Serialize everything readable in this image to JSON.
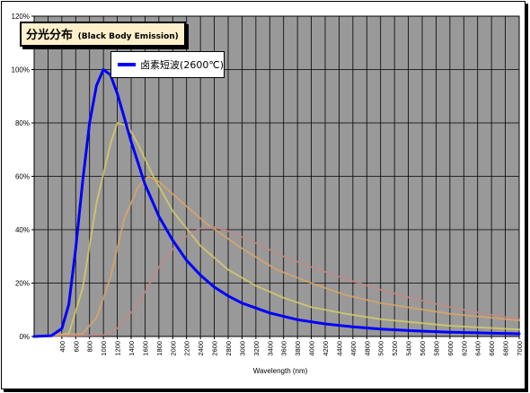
{
  "chart_data": {
    "type": "line",
    "title": "分光分布",
    "subtitle": "(Black Body Emission)",
    "xlabel": "Wavelength (nm)",
    "ylabel": "",
    "x_ticks": [
      400,
      600,
      800,
      1000,
      1200,
      1400,
      1600,
      1800,
      2000,
      2200,
      2400,
      2600,
      2800,
      3000,
      3200,
      3400,
      3600,
      3800,
      4000,
      4200,
      4400,
      4600,
      4800,
      5000,
      5200,
      5400,
      5600,
      5800,
      6000,
      6200,
      6400,
      6600,
      6800,
      7000
    ],
    "y_ticks": [
      "0%",
      "20%",
      "40%",
      "60%",
      "80%",
      "100%",
      "120%"
    ],
    "xlim": [
      0,
      7000
    ],
    "ylim": [
      0,
      120
    ],
    "grid": true,
    "legend_position": "top-left",
    "series": [
      {
        "name": "卤素短波(2600℃)",
        "color": "#0000ff",
        "emphasis": true,
        "points": [
          [
            0,
            0
          ],
          [
            250,
            0.3
          ],
          [
            400,
            3
          ],
          [
            500,
            12
          ],
          [
            600,
            33
          ],
          [
            700,
            58
          ],
          [
            800,
            80
          ],
          [
            900,
            94
          ],
          [
            1000,
            100
          ],
          [
            1100,
            98
          ],
          [
            1200,
            91
          ],
          [
            1300,
            82
          ],
          [
            1400,
            73
          ],
          [
            1600,
            57
          ],
          [
            1800,
            45
          ],
          [
            2000,
            36
          ],
          [
            2200,
            28.5
          ],
          [
            2400,
            23
          ],
          [
            2600,
            18.5
          ],
          [
            2800,
            15.2
          ],
          [
            3000,
            12.5
          ],
          [
            3400,
            8.8
          ],
          [
            3800,
            6.3
          ],
          [
            4200,
            4.7
          ],
          [
            4600,
            3.6
          ],
          [
            5000,
            2.8
          ],
          [
            5500,
            2.1
          ],
          [
            6000,
            1.6
          ],
          [
            6500,
            1.3
          ],
          [
            7000,
            1.0
          ]
        ]
      },
      {
        "name": "",
        "color": "#d8cc66",
        "emphasis": false,
        "points": [
          [
            0,
            0
          ],
          [
            500,
            1
          ],
          [
            700,
            18
          ],
          [
            900,
            50
          ],
          [
            1100,
            72
          ],
          [
            1200,
            80
          ],
          [
            1350,
            79
          ],
          [
            1500,
            72
          ],
          [
            1700,
            61
          ],
          [
            2000,
            47
          ],
          [
            2400,
            34
          ],
          [
            2800,
            25
          ],
          [
            3200,
            19
          ],
          [
            3600,
            14.5
          ],
          [
            4000,
            11
          ],
          [
            4500,
            8.5
          ],
          [
            5000,
            6.5
          ],
          [
            6000,
            4
          ],
          [
            7000,
            2.6
          ]
        ]
      },
      {
        "name": "",
        "color": "#d8a666",
        "emphasis": false,
        "points": [
          [
            0,
            0
          ],
          [
            700,
            1
          ],
          [
            900,
            7
          ],
          [
            1100,
            22
          ],
          [
            1300,
            44
          ],
          [
            1500,
            56
          ],
          [
            1650,
            60
          ],
          [
            1800,
            58
          ],
          [
            2100,
            51
          ],
          [
            2500,
            42
          ],
          [
            3000,
            33
          ],
          [
            3500,
            25
          ],
          [
            4000,
            20
          ],
          [
            4500,
            15.5
          ],
          [
            5000,
            12.5
          ],
          [
            6000,
            8.5
          ],
          [
            7000,
            6
          ]
        ]
      },
      {
        "name": "",
        "color": "#c28888",
        "emphasis": false,
        "points": [
          [
            0,
            0
          ],
          [
            1000,
            0.5
          ],
          [
            1200,
            3
          ],
          [
            1500,
            12
          ],
          [
            1800,
            26
          ],
          [
            2100,
            36
          ],
          [
            2400,
            40.5
          ],
          [
            2600,
            41
          ],
          [
            2800,
            39.5
          ],
          [
            3200,
            35
          ],
          [
            3600,
            30
          ],
          [
            4000,
            26
          ],
          [
            4500,
            21.5
          ],
          [
            5000,
            17.5
          ],
          [
            5500,
            14
          ],
          [
            6000,
            11
          ],
          [
            6500,
            8.5
          ],
          [
            7000,
            6.5
          ]
        ]
      }
    ]
  },
  "colors": {
    "plot_background": "#999999",
    "gridline": "#000000",
    "title_background": "#fff0cc"
  }
}
